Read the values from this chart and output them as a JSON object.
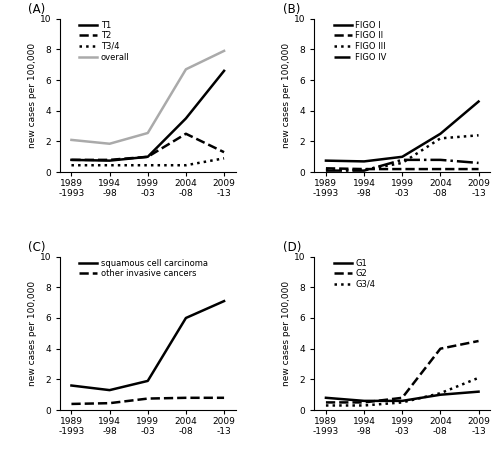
{
  "x_labels_line1": [
    "1989",
    "1994",
    "1999",
    "2004",
    "2009"
  ],
  "x_labels_line2": [
    "-1993",
    "-98",
    "-03",
    "-08",
    "-13"
  ],
  "x_values": [
    0,
    1,
    2,
    3,
    4
  ],
  "panel_A": {
    "label": "A",
    "series": {
      "T1": {
        "values": [
          0.8,
          0.75,
          1.0,
          3.5,
          6.6
        ],
        "style": "solid",
        "color": "#000000",
        "lw": 1.8
      },
      "T2": {
        "values": [
          0.8,
          0.8,
          1.0,
          2.5,
          1.3
        ],
        "style": "dashed",
        "color": "#000000",
        "lw": 1.8
      },
      "T3/4": {
        "values": [
          0.45,
          0.45,
          0.45,
          0.45,
          0.9
        ],
        "style": "dotted",
        "color": "#000000",
        "lw": 1.8
      },
      "overall": {
        "values": [
          2.1,
          1.85,
          2.55,
          6.7,
          7.9
        ],
        "style": "solid",
        "color": "#aaaaaa",
        "lw": 1.8
      }
    },
    "legend_order": [
      "T1",
      "T2",
      "T3/4",
      "overall"
    ]
  },
  "panel_B": {
    "label": "B",
    "series": {
      "FIGO I": {
        "values": [
          0.75,
          0.7,
          1.0,
          2.5,
          4.6
        ],
        "style": "solid",
        "color": "#000000",
        "lw": 1.8
      },
      "FIGO II": {
        "values": [
          0.25,
          0.2,
          0.2,
          0.2,
          0.2
        ],
        "style": "dashed",
        "color": "#000000",
        "lw": 1.8
      },
      "FIGO III": {
        "values": [
          0.15,
          0.15,
          0.6,
          2.2,
          2.4
        ],
        "style": "dotted",
        "color": "#000000",
        "lw": 1.8
      },
      "FIGO IV": {
        "values": [
          0.1,
          0.1,
          0.8,
          0.8,
          0.6
        ],
        "style": "dashdot",
        "color": "#000000",
        "lw": 1.8
      }
    },
    "legend_order": [
      "FIGO I",
      "FIGO II",
      "FIGO III",
      "FIGO IV"
    ]
  },
  "panel_C": {
    "label": "C",
    "series": {
      "squamous cell carcinoma": {
        "values": [
          1.6,
          1.3,
          1.9,
          6.0,
          7.1
        ],
        "style": "solid",
        "color": "#000000",
        "lw": 1.8
      },
      "other invasive cancers": {
        "values": [
          0.4,
          0.45,
          0.75,
          0.8,
          0.8
        ],
        "style": "dashed",
        "color": "#000000",
        "lw": 1.8
      }
    },
    "legend_order": [
      "squamous cell carcinoma",
      "other invasive cancers"
    ]
  },
  "panel_D": {
    "label": "D",
    "series": {
      "G1": {
        "values": [
          0.8,
          0.6,
          0.6,
          1.0,
          1.2
        ],
        "style": "solid",
        "color": "#000000",
        "lw": 1.8
      },
      "G2": {
        "values": [
          0.5,
          0.5,
          0.8,
          4.0,
          4.5
        ],
        "style": "dashed",
        "color": "#000000",
        "lw": 1.8
      },
      "G3/4": {
        "values": [
          0.3,
          0.3,
          0.5,
          1.1,
          2.1
        ],
        "style": "dotted",
        "color": "#000000",
        "lw": 1.8
      }
    },
    "legend_order": [
      "G1",
      "G2",
      "G3/4"
    ]
  },
  "ylim": [
    0,
    10
  ],
  "yticks": [
    0,
    2,
    4,
    6,
    8,
    10
  ],
  "ylabel": "new cases per 100,000",
  "background_color": "#ffffff"
}
